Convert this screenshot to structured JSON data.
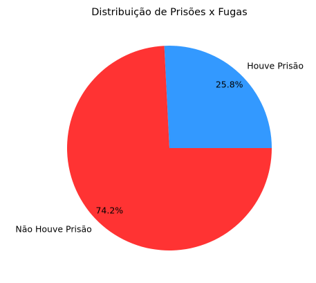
{
  "chart_data": {
    "type": "pie",
    "title": "Distribuição de Prisões x Fugas",
    "categories": [
      "Houve Prisão",
      "Não Houve Prisão"
    ],
    "values": [
      25.8,
      74.2
    ],
    "value_labels": [
      "25.8%",
      "74.2%"
    ],
    "colors": [
      "#3399ff",
      "#ff3333"
    ],
    "start_angle_deg": 0,
    "direction": "counterclockwise",
    "legend": "none",
    "grid": false
  }
}
